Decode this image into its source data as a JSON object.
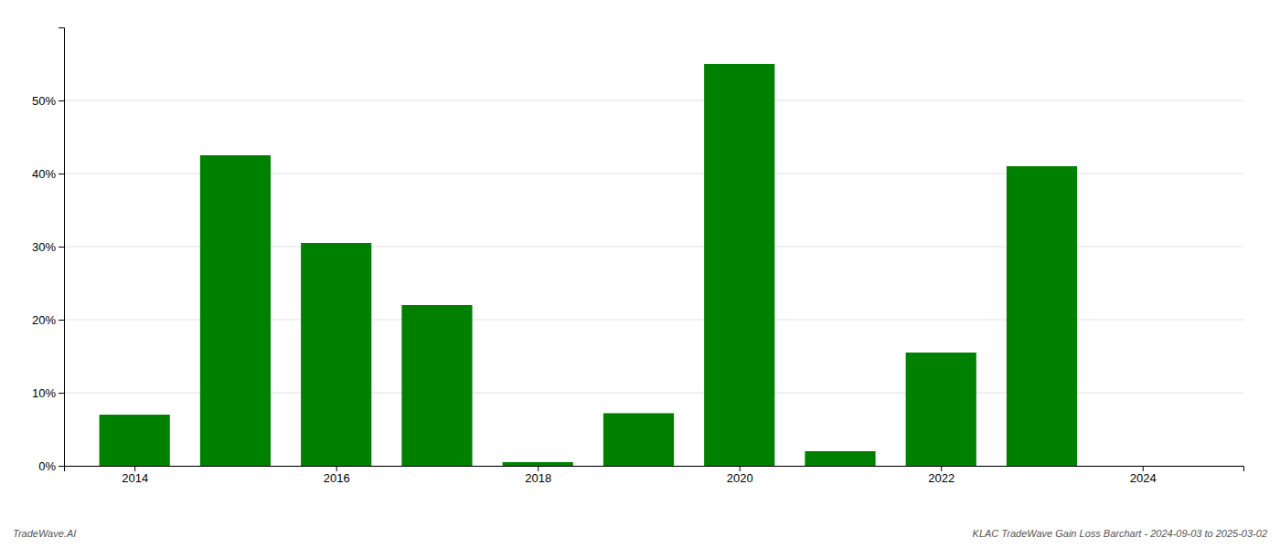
{
  "chart_data": {
    "type": "bar",
    "x": [
      2014,
      2015,
      2016,
      2017,
      2018,
      2019,
      2020,
      2021,
      2022,
      2023,
      2024
    ],
    "values": [
      0.07,
      0.425,
      0.305,
      0.22,
      0.005,
      0.072,
      0.55,
      0.02,
      0.155,
      0.41,
      0.0
    ],
    "color": "#008000",
    "xlim": [
      2013.3,
      2025.0
    ],
    "xticks": [
      2014,
      2016,
      2018,
      2020,
      2022,
      2024
    ],
    "ylim": [
      0,
      0.6
    ],
    "yticks": [
      {
        "value": 0.0,
        "label": "0%"
      },
      {
        "value": 0.1,
        "label": "10%"
      },
      {
        "value": 0.2,
        "label": "20%"
      },
      {
        "value": 0.3,
        "label": "30%"
      },
      {
        "value": 0.4,
        "label": "40%"
      },
      {
        "value": 0.5,
        "label": "50%"
      }
    ],
    "grid": true,
    "annotations": [
      "TradeWave.AI",
      "KLAC TradeWave Gain Loss Barchart - 2024-09-03 to 2025-03-02"
    ]
  }
}
